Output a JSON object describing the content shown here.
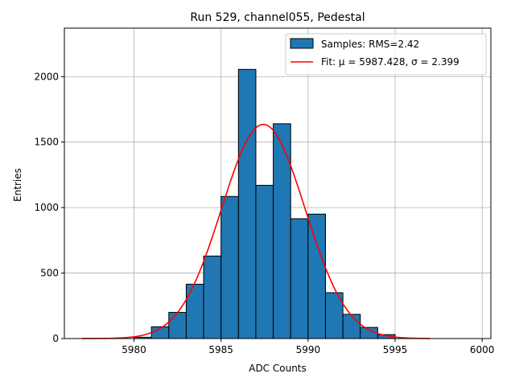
{
  "chart_data": {
    "type": "bar",
    "subtype": "histogram-with-fit",
    "title": "Run 529, channel055, Pedestal",
    "xlabel": "ADC Counts",
    "ylabel": "Entries",
    "xlim": [
      5976,
      6000.5
    ],
    "ylim": [
      0,
      2370
    ],
    "xticks": [
      5980,
      5985,
      5990,
      5995,
      6000
    ],
    "yticks": [
      0,
      500,
      1000,
      1500,
      2000
    ],
    "grid": true,
    "legend_position": "top-right",
    "bin_width": 1,
    "bins": [
      {
        "x0": 5980,
        "count": 10
      },
      {
        "x0": 5981,
        "count": 90
      },
      {
        "x0": 5982,
        "count": 200
      },
      {
        "x0": 5983,
        "count": 415
      },
      {
        "x0": 5984,
        "count": 630
      },
      {
        "x0": 5985,
        "count": 1085
      },
      {
        "x0": 5986,
        "count": 2055
      },
      {
        "x0": 5987,
        "count": 1170
      },
      {
        "x0": 5988,
        "count": 1640
      },
      {
        "x0": 5989,
        "count": 915
      },
      {
        "x0": 5990,
        "count": 950
      },
      {
        "x0": 5991,
        "count": 350
      },
      {
        "x0": 5992,
        "count": 185
      },
      {
        "x0": 5993,
        "count": 85
      },
      {
        "x0": 5994,
        "count": 30
      }
    ],
    "fit": {
      "mu": 5987.428,
      "sigma": 2.399,
      "amplitude": 1635,
      "x_range": [
        5977,
        5997
      ]
    },
    "series": [
      {
        "name": "Samples: RMS=2.42",
        "kind": "histogram",
        "color": "#1f77b4"
      },
      {
        "name": "Fit: μ = 5987.428, σ = 2.399",
        "kind": "line",
        "color": "#ff0000"
      }
    ]
  }
}
